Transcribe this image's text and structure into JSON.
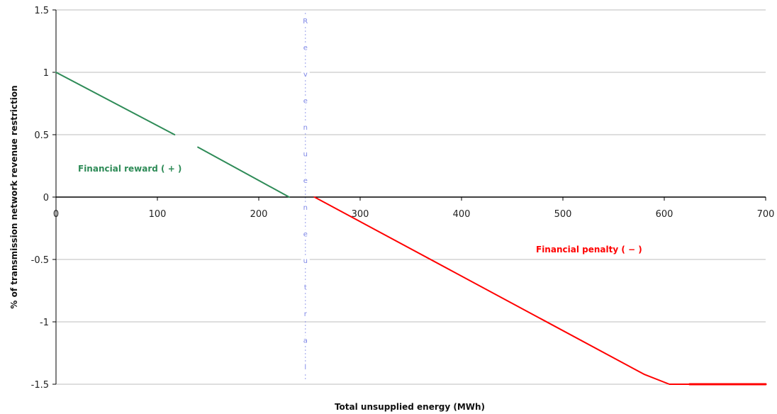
{
  "chart_data": {
    "type": "line",
    "xlabel": "Total unsupplied energy (MWh)",
    "ylabel": "% of transmission network revenue restriction",
    "xlim": [
      0,
      700
    ],
    "ylim": [
      -1.5,
      1.5
    ],
    "x_ticks": [
      "0",
      "100",
      "200",
      "300",
      "400",
      "500",
      "600",
      "700"
    ],
    "y_ticks": [
      "1.5",
      "1",
      "0.5",
      "0",
      "-0.5",
      "-1",
      "-1.5"
    ],
    "grid": "horizontal",
    "series": [
      {
        "color": "#2e8b57",
        "segments": [
          [
            [
              0,
              1.0
            ],
            [
              117,
              0.5
            ]
          ],
          [
            [
              140,
              0.4
            ],
            [
              230,
              0.0
            ]
          ]
        ]
      },
      {
        "color": "#ff0000",
        "segments": [
          [
            [
              255,
              0.0
            ],
            [
              580,
              -1.42
            ],
            [
              605,
              -1.5
            ],
            [
              625,
              -1.5
            ]
          ],
          [
            [
              625,
              -1.5
            ],
            [
              700,
              -1.5
            ]
          ]
        ]
      }
    ],
    "neutral_band": {
      "x_center": 246,
      "color": "#7d86e6",
      "letters": [
        "R",
        "e",
        "v",
        "e",
        "n",
        "u",
        "e",
        "n",
        "e",
        "u",
        "t",
        "r",
        "a",
        "l"
      ]
    },
    "annotations": [
      {
        "text": "Financial reward ( + )",
        "color": "#2e8b57"
      },
      {
        "text": "Financial penalty ( − )",
        "color": "#ff0000"
      }
    ]
  }
}
